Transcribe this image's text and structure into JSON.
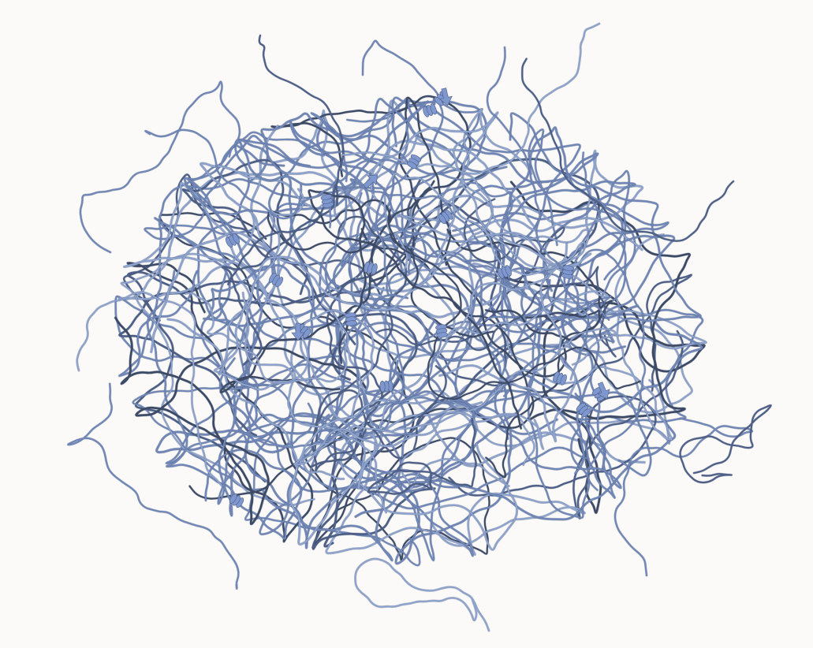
{
  "scene": {
    "subject": "protein-ribbon-structure",
    "background": "#fbfaf9",
    "colors": {
      "coil_light": "#8da2cc",
      "coil_mid": "#6f86b7",
      "coil_dark": "#4d5f86",
      "coil_shadow": "#3d4a66",
      "motif": "#7f97cf"
    }
  }
}
